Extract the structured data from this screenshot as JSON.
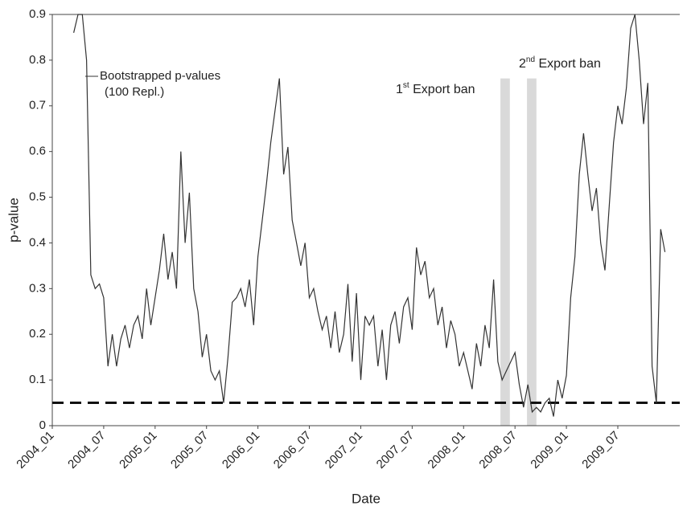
{
  "chart_data": {
    "type": "line",
    "x_label": "Date",
    "y_label": "p-value",
    "categories": [
      "2004_01",
      null,
      null,
      null,
      null,
      null,
      null,
      null,
      null,
      null,
      null,
      null,
      "2004_07",
      null,
      null,
      null,
      null,
      null,
      null,
      null,
      null,
      null,
      null,
      null,
      "2005_01",
      null,
      null,
      null,
      null,
      null,
      null,
      null,
      null,
      null,
      null,
      null,
      "2005_07",
      null,
      null,
      null,
      null,
      null,
      null,
      null,
      null,
      null,
      null,
      null,
      "2006_01",
      null,
      null,
      null,
      null,
      null,
      null,
      null,
      null,
      null,
      null,
      null,
      "2006_07",
      null,
      null,
      null,
      null,
      null,
      null,
      null,
      null,
      null,
      null,
      null,
      "2007_01",
      null,
      null,
      null,
      null,
      null,
      null,
      null,
      null,
      null,
      null,
      null,
      "2007_07",
      null,
      null,
      null,
      null,
      null,
      null,
      null,
      null,
      null,
      null,
      null,
      "2008_01",
      null,
      null,
      null,
      null,
      null,
      null,
      null,
      null,
      null,
      null,
      null,
      "2008_07",
      null,
      null,
      null,
      null,
      null,
      null,
      null,
      null,
      null,
      null,
      null,
      "2009_01",
      null,
      null,
      null,
      null,
      null,
      null,
      null,
      null,
      null,
      null,
      null,
      "2009_07",
      null,
      null,
      null,
      null,
      null,
      null,
      null,
      null,
      null,
      null,
      null
    ],
    "series": [
      {
        "name": [
          "Bootstrapped p-values",
          "(100 Repl.)"
        ],
        "color": "#333333",
        "values": [
          null,
          null,
          null,
          null,
          null,
          0.86,
          0.9,
          0.9,
          0.8,
          0.33,
          0.3,
          0.31,
          0.28,
          0.13,
          0.2,
          0.13,
          0.19,
          0.22,
          0.17,
          0.22,
          0.24,
          0.19,
          0.3,
          0.22,
          0.28,
          0.34,
          0.42,
          0.32,
          0.38,
          0.3,
          0.6,
          0.4,
          0.51,
          0.3,
          0.25,
          0.15,
          0.2,
          0.12,
          0.1,
          0.12,
          0.05,
          0.15,
          0.27,
          0.28,
          0.3,
          0.26,
          0.32,
          0.22,
          0.37,
          0.45,
          0.53,
          0.62,
          0.69,
          0.76,
          0.55,
          0.61,
          0.45,
          0.4,
          0.35,
          0.4,
          0.28,
          0.3,
          0.25,
          0.21,
          0.24,
          0.17,
          0.25,
          0.16,
          0.2,
          0.31,
          0.14,
          0.29,
          0.1,
          0.24,
          0.22,
          0.24,
          0.13,
          0.21,
          0.1,
          0.22,
          0.25,
          0.18,
          0.26,
          0.28,
          0.21,
          0.39,
          0.33,
          0.36,
          0.28,
          0.3,
          0.22,
          0.26,
          0.17,
          0.23,
          0.2,
          0.13,
          0.16,
          0.12,
          0.08,
          0.18,
          0.13,
          0.22,
          0.17,
          0.32,
          0.14,
          0.1,
          0.12,
          0.14,
          0.16,
          0.09,
          0.04,
          0.09,
          0.03,
          0.04,
          0.03,
          0.05,
          0.06,
          0.02,
          0.1,
          0.06,
          0.11,
          0.28,
          0.37,
          0.55,
          0.64,
          0.55,
          0.47,
          0.52,
          0.4,
          0.34,
          0.48,
          0.62,
          0.7,
          0.66,
          0.74,
          0.87,
          0.9,
          0.8,
          0.66,
          0.75,
          0.13,
          0.05,
          0.43,
          0.38
        ]
      }
    ],
    "threshold": 0.05,
    "events": [
      {
        "text": [
          "1",
          "st",
          " Export ban"
        ],
        "from": 104.6,
        "to": 106.8
      },
      {
        "text": [
          "2",
          "nd",
          " Export ban"
        ],
        "from": 110.8,
        "to": 113
      }
    ],
    "ylim": [
      0,
      0.9
    ],
    "yticks": [
      0,
      0.1,
      0.2,
      0.3,
      0.4,
      0.5,
      0.6,
      0.7,
      0.8,
      0.9
    ],
    "grid": false
  }
}
